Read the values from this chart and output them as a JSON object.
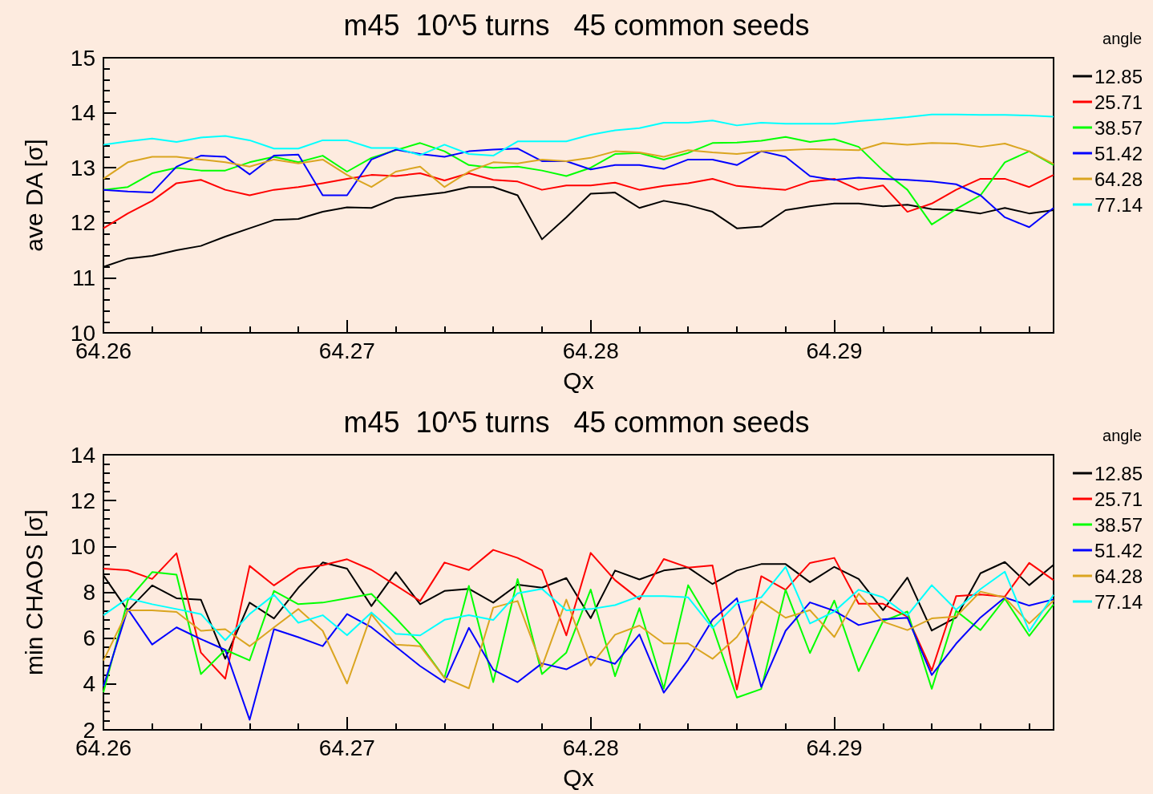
{
  "chart_data": [
    {
      "type": "line",
      "title": "m45  10^5 turns   45 common seeds",
      "xlabel": "Qx",
      "ylabel": "ave DA [σ]",
      "legend_title": "angle",
      "legend": "right",
      "xlim": [
        64.26,
        64.299
      ],
      "xticks": [
        64.26,
        64.27,
        64.28,
        64.29
      ],
      "ylim": [
        10,
        15
      ],
      "yticks": [
        10,
        11,
        12,
        13,
        14,
        15
      ],
      "x": [
        64.26,
        64.261,
        64.262,
        64.263,
        64.264,
        64.265,
        64.266,
        64.267,
        64.268,
        64.269,
        64.27,
        64.271,
        64.272,
        64.273,
        64.274,
        64.275,
        64.276,
        64.277,
        64.278,
        64.279,
        64.28,
        64.281,
        64.282,
        64.283,
        64.284,
        64.285,
        64.286,
        64.287,
        64.288,
        64.289,
        64.29,
        64.291,
        64.292,
        64.293,
        64.294,
        64.295,
        64.296,
        64.297,
        64.298,
        64.299
      ],
      "series": [
        {
          "name": "12.85",
          "color": "#000000",
          "values": [
            11.2,
            11.35,
            11.4,
            11.5,
            11.58,
            11.75,
            11.9,
            12.05,
            12.07,
            12.2,
            12.28,
            12.27,
            12.45,
            12.5,
            12.55,
            12.65,
            12.65,
            12.5,
            11.7,
            12.1,
            12.53,
            12.55,
            12.27,
            12.4,
            12.32,
            12.2,
            11.9,
            11.93,
            12.23,
            12.3,
            12.35,
            12.35,
            12.3,
            12.33,
            12.25,
            12.23,
            12.17,
            12.27,
            12.17,
            12.23
          ]
        },
        {
          "name": "25.71",
          "color": "#ff0000",
          "values": [
            11.9,
            12.17,
            12.4,
            12.72,
            12.78,
            12.6,
            12.5,
            12.6,
            12.65,
            12.72,
            12.8,
            12.87,
            12.85,
            12.9,
            12.77,
            12.9,
            12.78,
            12.75,
            12.6,
            12.68,
            12.68,
            12.73,
            12.6,
            12.67,
            12.72,
            12.8,
            12.67,
            12.63,
            12.6,
            12.75,
            12.8,
            12.6,
            12.68,
            12.2,
            12.35,
            12.6,
            12.8,
            12.8,
            12.65,
            12.87
          ]
        },
        {
          "name": "38.57",
          "color": "#00ff00",
          "values": [
            12.6,
            12.65,
            12.9,
            13.0,
            12.95,
            12.95,
            13.1,
            13.2,
            13.1,
            13.22,
            12.93,
            13.18,
            13.32,
            13.45,
            13.3,
            13.05,
            13.0,
            13.02,
            12.95,
            12.85,
            13.0,
            13.25,
            13.27,
            13.15,
            13.27,
            13.45,
            13.46,
            13.49,
            13.56,
            13.47,
            13.52,
            13.38,
            12.95,
            12.6,
            11.97,
            12.25,
            12.5,
            13.1,
            13.3,
            13.05
          ]
        },
        {
          "name": "51.42",
          "color": "#0000ff",
          "values": [
            12.6,
            12.57,
            12.55,
            13.02,
            13.22,
            13.2,
            12.88,
            13.22,
            13.24,
            12.5,
            12.5,
            13.15,
            13.33,
            13.25,
            13.2,
            13.3,
            13.33,
            13.35,
            13.12,
            13.12,
            12.97,
            13.05,
            13.05,
            12.98,
            13.15,
            13.15,
            13.05,
            13.3,
            13.2,
            12.85,
            12.78,
            12.82,
            12.8,
            12.78,
            12.75,
            12.7,
            12.5,
            12.1,
            11.92,
            12.27
          ]
        },
        {
          "name": "64.28",
          "color": "#daa520",
          "values": [
            12.8,
            13.1,
            13.2,
            13.2,
            13.15,
            13.1,
            13.02,
            13.15,
            13.08,
            13.15,
            12.87,
            12.65,
            12.93,
            13.02,
            12.65,
            12.93,
            13.1,
            13.08,
            13.15,
            13.12,
            13.18,
            13.3,
            13.28,
            13.2,
            13.32,
            13.28,
            13.25,
            13.3,
            13.32,
            13.34,
            13.33,
            13.32,
            13.45,
            13.42,
            13.45,
            13.44,
            13.38,
            13.44,
            13.3,
            13.07
          ]
        },
        {
          "name": "77.14",
          "color": "#00ffff",
          "values": [
            13.42,
            13.48,
            13.53,
            13.47,
            13.55,
            13.58,
            13.5,
            13.35,
            13.35,
            13.5,
            13.5,
            13.36,
            13.36,
            13.23,
            13.42,
            13.25,
            13.22,
            13.48,
            13.48,
            13.48,
            13.6,
            13.68,
            13.72,
            13.82,
            13.82,
            13.86,
            13.77,
            13.82,
            13.8,
            13.8,
            13.8,
            13.85,
            13.88,
            13.92,
            13.97,
            13.97,
            13.96,
            13.96,
            13.95,
            13.93
          ]
        }
      ]
    },
    {
      "type": "line",
      "title": "m45  10^5 turns   45 common seeds",
      "xlabel": "Qx",
      "ylabel": "min CHAOS [σ]",
      "legend_title": "angle",
      "legend": "right",
      "xlim": [
        64.26,
        64.299
      ],
      "xticks": [
        64.26,
        64.27,
        64.28,
        64.29
      ],
      "ylim": [
        2,
        14
      ],
      "yticks": [
        2,
        4,
        6,
        8,
        10,
        12,
        14
      ],
      "x": [
        64.26,
        64.261,
        64.262,
        64.263,
        64.264,
        64.265,
        64.266,
        64.267,
        64.268,
        64.269,
        64.27,
        64.271,
        64.272,
        64.273,
        64.274,
        64.275,
        64.276,
        64.277,
        64.278,
        64.279,
        64.28,
        64.281,
        64.282,
        64.283,
        64.284,
        64.285,
        64.286,
        64.287,
        64.288,
        64.289,
        64.29,
        64.291,
        64.292,
        64.293,
        64.294,
        64.295,
        64.296,
        64.297,
        64.298,
        64.299
      ],
      "series": [
        {
          "name": "12.85",
          "color": "#000000",
          "values": [
            8.74,
            7.2,
            8.3,
            7.74,
            7.68,
            5.1,
            7.55,
            6.86,
            8.2,
            9.3,
            9.03,
            7.4,
            8.88,
            7.48,
            8.06,
            8.15,
            7.55,
            8.33,
            8.2,
            8.62,
            6.87,
            8.95,
            8.56,
            8.95,
            9.08,
            8.36,
            8.95,
            9.23,
            9.23,
            8.44,
            9.11,
            8.58,
            7.22,
            8.64,
            6.33,
            6.9,
            8.83,
            9.32,
            8.31,
            9.2
          ]
        },
        {
          "name": "25.71",
          "color": "#ff0000",
          "values": [
            9.03,
            8.96,
            8.58,
            9.7,
            5.37,
            4.23,
            9.15,
            8.3,
            9.03,
            9.18,
            9.44,
            8.98,
            8.3,
            7.62,
            9.3,
            8.97,
            9.85,
            9.5,
            8.97,
            6.12,
            9.72,
            8.53,
            7.69,
            9.45,
            9.08,
            9.17,
            3.76,
            8.7,
            8.11,
            9.28,
            9.5,
            7.5,
            7.5,
            6.94,
            4.59,
            7.83,
            7.9,
            7.81,
            9.28,
            8.53
          ]
        },
        {
          "name": "38.57",
          "color": "#00ff00",
          "values": [
            3.64,
            7.65,
            8.88,
            8.77,
            4.43,
            5.49,
            5.03,
            8.06,
            7.48,
            7.55,
            7.74,
            7.93,
            6.87,
            5.73,
            4.27,
            8.28,
            4.08,
            8.58,
            4.43,
            5.37,
            8.12,
            4.34,
            7.31,
            3.79,
            8.31,
            6.52,
            3.41,
            3.78,
            8.11,
            5.35,
            7.64,
            4.56,
            6.74,
            7.16,
            3.79,
            7.19,
            6.35,
            7.72,
            6.1,
            7.47
          ]
        },
        {
          "name": "51.42",
          "color": "#0000ff",
          "values": [
            3.9,
            7.27,
            5.72,
            6.47,
            5.96,
            5.49,
            2.44,
            6.39,
            6.04,
            5.65,
            7.05,
            6.47,
            5.63,
            4.78,
            4.08,
            6.45,
            4.62,
            4.08,
            4.9,
            4.64,
            5.2,
            4.88,
            6.16,
            3.62,
            5.06,
            6.8,
            7.74,
            3.87,
            6.32,
            7.56,
            7.19,
            6.57,
            6.82,
            6.89,
            4.39,
            5.76,
            6.9,
            7.77,
            7.42,
            7.69
          ]
        },
        {
          "name": "64.28",
          "color": "#daa520",
          "values": [
            5.02,
            7.21,
            7.21,
            7.14,
            6.32,
            6.39,
            5.65,
            6.47,
            7.27,
            6.32,
            4.02,
            7.04,
            5.72,
            5.65,
            4.27,
            3.81,
            7.33,
            7.62,
            4.75,
            7.68,
            4.8,
            6.15,
            6.55,
            5.77,
            5.77,
            5.1,
            6.05,
            7.61,
            6.89,
            7.22,
            6.05,
            7.94,
            6.72,
            6.35,
            6.86,
            6.94,
            8.03,
            7.77,
            6.64,
            7.64
          ]
        },
        {
          "name": "77.14",
          "color": "#00ffff",
          "values": [
            7.0,
            7.74,
            7.48,
            7.27,
            7.05,
            5.91,
            7.05,
            7.89,
            6.67,
            7.0,
            6.13,
            7.12,
            6.19,
            6.12,
            6.8,
            7.0,
            6.79,
            7.96,
            8.15,
            7.21,
            7.27,
            7.44,
            7.83,
            7.83,
            7.78,
            6.44,
            7.52,
            7.78,
            9.11,
            6.64,
            7.16,
            8.11,
            7.78,
            6.99,
            8.31,
            7.24,
            8.14,
            8.9,
            6.3,
            7.89
          ]
        }
      ]
    }
  ]
}
